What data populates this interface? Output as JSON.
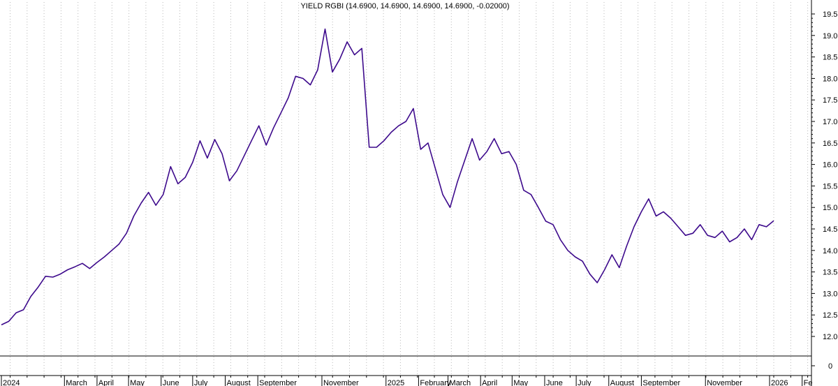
{
  "chart_data": {
    "type": "line",
    "title": "YIELD RGBI (14.6900, 14.6900, 14.6900, 14.6900, -0.02000)",
    "xlabel": "",
    "ylabel": "",
    "ylim": [
      12.0,
      19.5
    ],
    "y_ticks": [
      "19.5",
      "19.0",
      "18.5",
      "18.0",
      "17.5",
      "17.0",
      "16.5",
      "16.0",
      "15.5",
      "15.0",
      "14.5",
      "14.0",
      "13.5",
      "13.0",
      "12.5",
      "12.0"
    ],
    "lower_panel_ticks": [
      "0"
    ],
    "x_tick_labels": [
      {
        "date": "2024-01-01",
        "label": "2024"
      },
      {
        "date": "2024-03-01",
        "label": "March"
      },
      {
        "date": "2024-04-01",
        "label": "April"
      },
      {
        "date": "2024-05-01",
        "label": "May"
      },
      {
        "date": "2024-06-01",
        "label": "June"
      },
      {
        "date": "2024-07-01",
        "label": "July"
      },
      {
        "date": "2024-08-01",
        "label": "August"
      },
      {
        "date": "2024-09-01",
        "label": "September"
      },
      {
        "date": "2024-11-01",
        "label": "November"
      },
      {
        "date": "2025-01-01",
        "label": "2025"
      },
      {
        "date": "2025-02-01",
        "label": "February"
      },
      {
        "date": "2025-03-01",
        "label": "March"
      },
      {
        "date": "2025-04-01",
        "label": "April"
      },
      {
        "date": "2025-05-01",
        "label": "May"
      },
      {
        "date": "2025-06-01",
        "label": "June"
      },
      {
        "date": "2025-07-01",
        "label": "July"
      },
      {
        "date": "2025-08-01",
        "label": "August"
      },
      {
        "date": "2025-09-01",
        "label": "September"
      },
      {
        "date": "2025-11-01",
        "label": "November"
      },
      {
        "date": "2026-01-01",
        "label": "2026"
      },
      {
        "date": "2026-02-01",
        "label": "Fe"
      }
    ],
    "grid": "vertical dotted",
    "series": [
      {
        "color": "#3d0a8c",
        "points": [
          [
            "2024-01-01",
            12.27
          ],
          [
            "2024-01-08",
            12.35
          ],
          [
            "2024-01-15",
            12.55
          ],
          [
            "2024-01-22",
            12.62
          ],
          [
            "2024-01-29",
            12.93
          ],
          [
            "2024-02-05",
            13.15
          ],
          [
            "2024-02-12",
            13.4
          ],
          [
            "2024-02-19",
            13.38
          ],
          [
            "2024-02-26",
            13.45
          ],
          [
            "2024-03-04",
            13.55
          ],
          [
            "2024-03-11",
            13.62
          ],
          [
            "2024-03-18",
            13.7
          ],
          [
            "2024-03-25",
            13.58
          ],
          [
            "2024-04-01",
            13.72
          ],
          [
            "2024-04-08",
            13.85
          ],
          [
            "2024-04-15",
            14.0
          ],
          [
            "2024-04-22",
            14.15
          ],
          [
            "2024-04-29",
            14.4
          ],
          [
            "2024-05-06",
            14.8
          ],
          [
            "2024-05-13",
            15.1
          ],
          [
            "2024-05-20",
            15.35
          ],
          [
            "2024-05-27",
            15.05
          ],
          [
            "2024-06-03",
            15.3
          ],
          [
            "2024-06-10",
            15.95
          ],
          [
            "2024-06-17",
            15.55
          ],
          [
            "2024-06-24",
            15.7
          ],
          [
            "2024-07-01",
            16.05
          ],
          [
            "2024-07-08",
            16.55
          ],
          [
            "2024-07-15",
            16.15
          ],
          [
            "2024-07-22",
            16.58
          ],
          [
            "2024-07-29",
            16.25
          ],
          [
            "2024-08-05",
            15.62
          ],
          [
            "2024-08-12",
            15.85
          ],
          [
            "2024-08-19",
            16.2
          ],
          [
            "2024-08-26",
            16.55
          ],
          [
            "2024-09-02",
            16.9
          ],
          [
            "2024-09-09",
            16.45
          ],
          [
            "2024-09-16",
            16.85
          ],
          [
            "2024-09-23",
            17.2
          ],
          [
            "2024-09-30",
            17.55
          ],
          [
            "2024-10-07",
            18.05
          ],
          [
            "2024-10-14",
            18.0
          ],
          [
            "2024-10-21",
            17.85
          ],
          [
            "2024-10-28",
            18.2
          ],
          [
            "2024-11-04",
            19.15
          ],
          [
            "2024-11-11",
            18.15
          ],
          [
            "2024-11-18",
            18.45
          ],
          [
            "2024-11-25",
            18.85
          ],
          [
            "2024-12-02",
            18.55
          ],
          [
            "2024-12-09",
            18.7
          ],
          [
            "2024-12-16",
            16.4
          ],
          [
            "2024-12-23",
            16.4
          ],
          [
            "2024-12-30",
            16.55
          ],
          [
            "2025-01-06",
            16.75
          ],
          [
            "2025-01-13",
            16.9
          ],
          [
            "2025-01-20",
            17.0
          ],
          [
            "2025-01-27",
            17.3
          ],
          [
            "2025-02-03",
            16.35
          ],
          [
            "2025-02-10",
            16.5
          ],
          [
            "2025-02-17",
            15.9
          ],
          [
            "2025-02-24",
            15.3
          ],
          [
            "2025-03-03",
            15.0
          ],
          [
            "2025-03-10",
            15.6
          ],
          [
            "2025-03-17",
            16.1
          ],
          [
            "2025-03-24",
            16.6
          ],
          [
            "2025-03-31",
            16.1
          ],
          [
            "2025-04-07",
            16.3
          ],
          [
            "2025-04-14",
            16.6
          ],
          [
            "2025-04-21",
            16.25
          ],
          [
            "2025-04-28",
            16.3
          ],
          [
            "2025-05-05",
            16.0
          ],
          [
            "2025-05-12",
            15.4
          ],
          [
            "2025-05-19",
            15.3
          ],
          [
            "2025-05-26",
            15.0
          ],
          [
            "2025-06-02",
            14.68
          ],
          [
            "2025-06-09",
            14.6
          ],
          [
            "2025-06-16",
            14.25
          ],
          [
            "2025-06-23",
            14.0
          ],
          [
            "2025-06-30",
            13.85
          ],
          [
            "2025-07-07",
            13.75
          ],
          [
            "2025-07-14",
            13.45
          ],
          [
            "2025-07-21",
            13.25
          ],
          [
            "2025-07-28",
            13.55
          ],
          [
            "2025-08-04",
            13.9
          ],
          [
            "2025-08-11",
            13.6
          ],
          [
            "2025-08-18",
            14.1
          ],
          [
            "2025-08-25",
            14.55
          ],
          [
            "2025-09-01",
            14.9
          ],
          [
            "2025-09-08",
            15.2
          ],
          [
            "2025-09-15",
            14.8
          ],
          [
            "2025-09-22",
            14.9
          ],
          [
            "2025-09-29",
            14.75
          ],
          [
            "2025-10-06",
            14.55
          ],
          [
            "2025-10-13",
            14.35
          ],
          [
            "2025-10-20",
            14.4
          ],
          [
            "2025-10-27",
            14.6
          ],
          [
            "2025-11-03",
            14.35
          ],
          [
            "2025-11-10",
            14.3
          ],
          [
            "2025-11-17",
            14.45
          ],
          [
            "2025-11-24",
            14.2
          ],
          [
            "2025-12-01",
            14.3
          ],
          [
            "2025-12-08",
            14.5
          ],
          [
            "2025-12-15",
            14.25
          ],
          [
            "2025-12-22",
            14.6
          ],
          [
            "2025-12-29",
            14.55
          ],
          [
            "2026-01-05",
            14.69
          ]
        ]
      }
    ]
  }
}
